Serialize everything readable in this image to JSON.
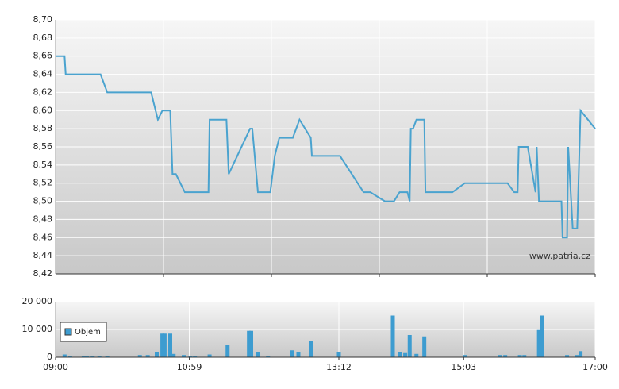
{
  "chart_data": [
    {
      "type": "line",
      "color": "#4aa3cf",
      "watermark": "www.patria.cz",
      "xlim": [
        "09:00",
        "17:00"
      ],
      "ylim": [
        8.42,
        8.7
      ],
      "yticks": [
        {
          "value": 8.42,
          "label": "8,42"
        },
        {
          "value": 8.44,
          "label": "8,44"
        },
        {
          "value": 8.46,
          "label": "8,46"
        },
        {
          "value": 8.48,
          "label": "8,48"
        },
        {
          "value": 8.5,
          "label": "8,50"
        },
        {
          "value": 8.52,
          "label": "8,52"
        },
        {
          "value": 8.54,
          "label": "8,54"
        },
        {
          "value": 8.56,
          "label": "8,56"
        },
        {
          "value": 8.58,
          "label": "8,58"
        },
        {
          "value": 8.6,
          "label": "8,60"
        },
        {
          "value": 8.62,
          "label": "8,62"
        },
        {
          "value": 8.64,
          "label": "8,64"
        },
        {
          "value": 8.66,
          "label": "8,66"
        },
        {
          "value": 8.68,
          "label": "8,68"
        },
        {
          "value": 8.7,
          "label": "8,70"
        }
      ],
      "grid": true,
      "x": [
        "09:00",
        "09:08",
        "09:09",
        "09:40",
        "09:46",
        "10:25",
        "10:31",
        "10:35",
        "10:42",
        "10:44",
        "10:47",
        "10:55",
        "11:16",
        "11:17",
        "11:32",
        "11:34",
        "11:53",
        "11:55",
        "12:00",
        "12:11",
        "12:15",
        "12:19",
        "12:31",
        "12:37",
        "12:47",
        "12:48",
        "13:13",
        "13:34",
        "13:40",
        "13:53",
        "14:01",
        "14:06",
        "14:13",
        "14:15",
        "14:16",
        "14:18",
        "14:21",
        "14:28",
        "14:29",
        "14:53",
        "15:04",
        "15:42",
        "15:48",
        "15:51",
        "15:52",
        "16:00",
        "16:07",
        "16:08",
        "16:10",
        "16:30",
        "16:31",
        "16:35",
        "16:36",
        "16:40",
        "16:44",
        "16:47",
        "17:00"
      ],
      "values": [
        8.66,
        8.66,
        8.64,
        8.64,
        8.62,
        8.62,
        8.59,
        8.6,
        8.6,
        8.53,
        8.53,
        8.51,
        8.51,
        8.59,
        8.59,
        8.53,
        8.58,
        8.58,
        8.51,
        8.51,
        8.55,
        8.57,
        8.57,
        8.59,
        8.57,
        8.55,
        8.55,
        8.51,
        8.51,
        8.5,
        8.5,
        8.51,
        8.51,
        8.5,
        8.58,
        8.58,
        8.59,
        8.59,
        8.51,
        8.51,
        8.52,
        8.52,
        8.51,
        8.51,
        8.56,
        8.56,
        8.51,
        8.56,
        8.5,
        8.5,
        8.46,
        8.46,
        8.56,
        8.47,
        8.47,
        8.6,
        8.58
      ]
    },
    {
      "type": "bar",
      "xlim": [
        "09:00",
        "17:00"
      ],
      "xticks": [
        "09:00",
        "10:59",
        "13:12",
        "15:03",
        "17:00"
      ],
      "ylim": [
        0,
        20000
      ],
      "yticks": [
        0,
        {
          "value": 10000,
          "label": "10 000"
        },
        {
          "value": 20000,
          "label": "20 000"
        }
      ],
      "grid": true,
      "legend": "center left",
      "x": [
        "09:08",
        "09:13",
        "09:25",
        "09:28",
        "09:33",
        "09:39",
        "09:46",
        "10:15",
        "10:22",
        "10:30",
        "10:35",
        "10:37",
        "10:42",
        "10:45",
        "10:54",
        "11:00",
        "11:04",
        "11:17",
        "11:33",
        "11:52",
        "11:54",
        "12:00",
        "12:09",
        "12:30",
        "12:36",
        "12:47",
        "13:12",
        "14:00",
        "14:06",
        "14:11",
        "14:15",
        "14:21",
        "14:28",
        "15:04",
        "15:35",
        "15:40",
        "15:53",
        "15:57",
        "16:10",
        "16:13",
        "16:35",
        "16:44",
        "16:47"
      ],
      "series": [
        {
          "name": "Objem",
          "color": "#3d9cd0",
          "values": [
            1000,
            500,
            500,
            500,
            500,
            500,
            500,
            800,
            800,
            1800,
            8500,
            8500,
            8500,
            1200,
            800,
            500,
            500,
            1000,
            4300,
            9500,
            9500,
            1800,
            300,
            2500,
            2000,
            6000,
            1800,
            15000,
            1800,
            1500,
            8000,
            1200,
            7500,
            800,
            800,
            800,
            800,
            800,
            9800,
            15000,
            800,
            800,
            2200
          ]
        }
      ]
    }
  ]
}
